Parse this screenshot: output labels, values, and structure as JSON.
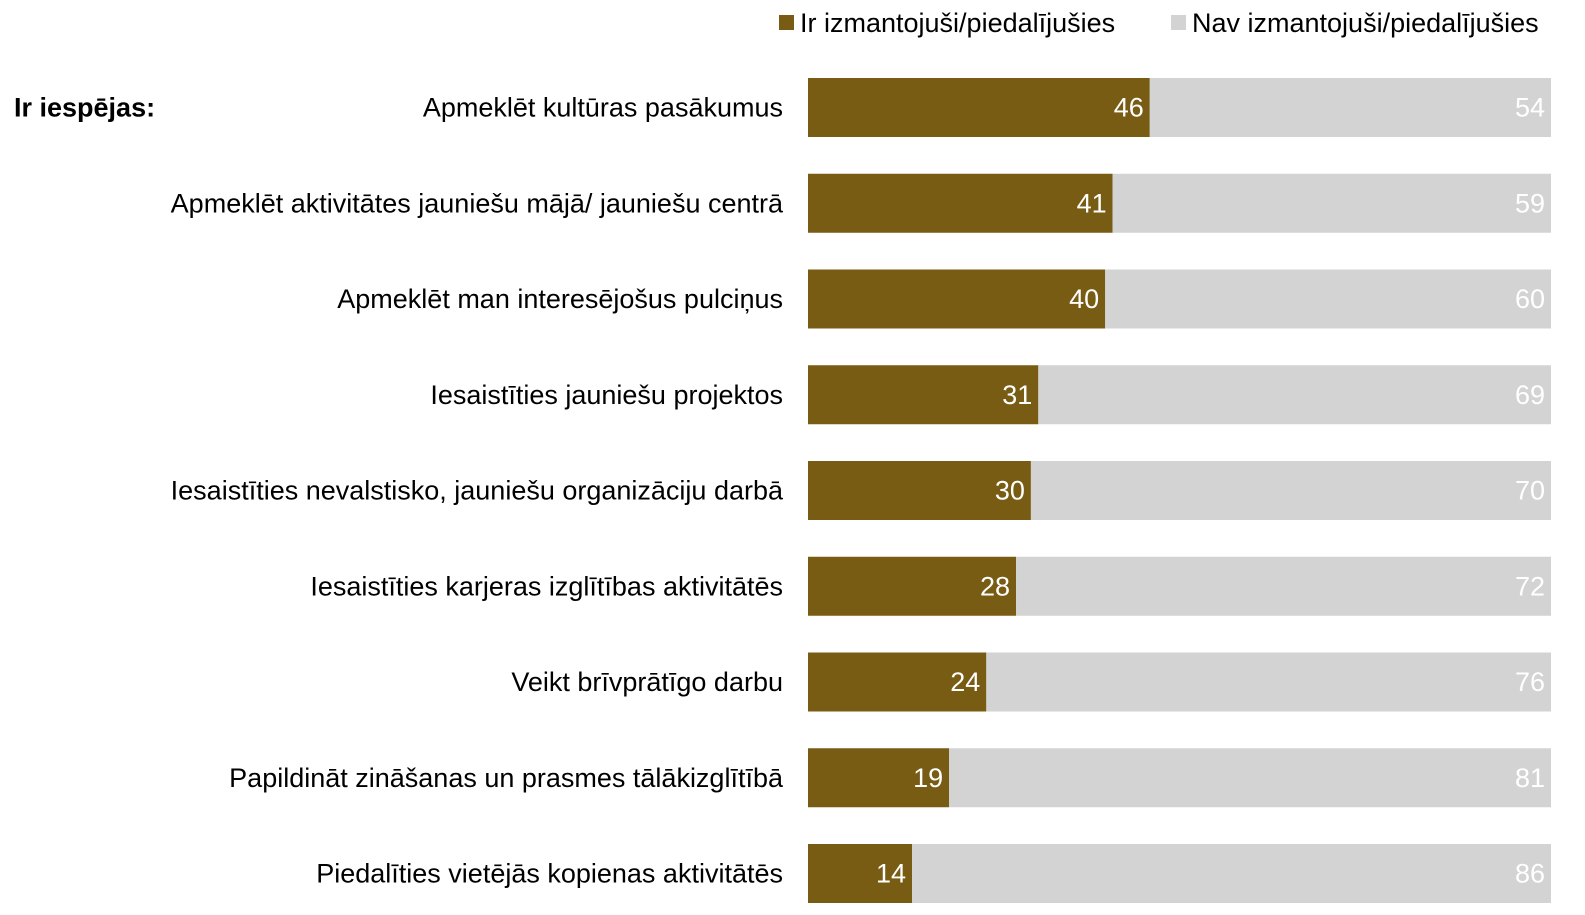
{
  "chart_data": {
    "type": "bar",
    "orientation": "horizontal",
    "stacked": true,
    "group_label": "Ir iespējas:",
    "categories": [
      "Apmeklēt kultūras pasākumus",
      "Apmeklēt aktivitātes jauniešu mājā/ jauniešu centrā",
      "Apmeklēt man interesējošus pulciņus",
      "Iesaistīties jauniešu projektos",
      "Iesaistīties nevalstisko, jauniešu organizāciju darbā",
      "Iesaistīties karjeras izglītības aktivitātēs",
      "Veikt brīvprātīgo darbu",
      "Papildināt zināšanas un prasmes tālākizglītībā",
      "Piedalīties vietējās kopienas aktivitātēs"
    ],
    "series": [
      {
        "name": "Ir izmantojuši/piedalījušies",
        "color": "#785c13",
        "values": [
          46,
          41,
          40,
          31,
          30,
          28,
          24,
          19,
          14
        ]
      },
      {
        "name": "Nav izmantojuši/piedalījušies",
        "color": "#d3d3d3",
        "values": [
          54,
          59,
          60,
          69,
          70,
          72,
          76,
          81,
          86
        ]
      }
    ],
    "xlim": [
      0,
      100
    ],
    "grid": false,
    "legend_position": "top-right",
    "data_label_color": "#ffffff"
  }
}
